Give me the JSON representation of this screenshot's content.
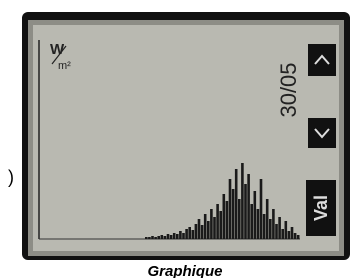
{
  "side_text": ")",
  "screen": {
    "unit_top": "W",
    "unit_bottom": "m²",
    "date": "30/05",
    "button_val": "Val",
    "graph": {
      "values": [
        2,
        2,
        3,
        2,
        3,
        4,
        3,
        5,
        4,
        6,
        5,
        8,
        6,
        10,
        12,
        9,
        15,
        20,
        14,
        25,
        18,
        30,
        22,
        35,
        28,
        45,
        38,
        60,
        50,
        70,
        40,
        76,
        55,
        65,
        35,
        48,
        30,
        60,
        25,
        40,
        20,
        30,
        15,
        22,
        10,
        18,
        8,
        12,
        6,
        4
      ],
      "max": 80,
      "color": "#1a1a1a"
    }
  },
  "caption": "Graphique"
}
